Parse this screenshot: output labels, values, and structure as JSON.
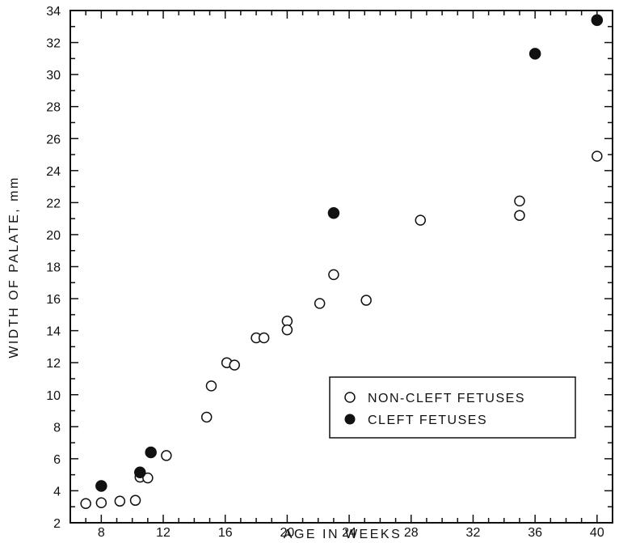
{
  "chart_data": {
    "type": "scatter",
    "title": "",
    "xlabel": "AGE IN WEEKS",
    "ylabel": "WIDTH OF PALATE, mm",
    "xlim": [
      6,
      41
    ],
    "ylim": [
      2,
      34
    ],
    "x_ticks": [
      8,
      12,
      16,
      20,
      24,
      28,
      32,
      36,
      40
    ],
    "y_ticks": [
      2,
      4,
      6,
      8,
      10,
      12,
      14,
      16,
      18,
      20,
      22,
      24,
      26,
      28,
      30,
      32,
      34
    ],
    "grid": false,
    "legend_position": "lower-right",
    "series": [
      {
        "name": "NON-CLEFT FETUSES",
        "marker": "open-circle",
        "color": "#111111",
        "points": [
          {
            "x": 7,
            "y": 3.2
          },
          {
            "x": 8,
            "y": 3.25
          },
          {
            "x": 9.2,
            "y": 3.35
          },
          {
            "x": 10.2,
            "y": 3.4
          },
          {
            "x": 10.5,
            "y": 4.85
          },
          {
            "x": 11,
            "y": 4.8
          },
          {
            "x": 12.2,
            "y": 6.2
          },
          {
            "x": 14.8,
            "y": 8.6
          },
          {
            "x": 15.1,
            "y": 10.55
          },
          {
            "x": 16.1,
            "y": 12
          },
          {
            "x": 16.6,
            "y": 11.85
          },
          {
            "x": 18,
            "y": 13.55
          },
          {
            "x": 18.5,
            "y": 13.55
          },
          {
            "x": 20,
            "y": 14.6
          },
          {
            "x": 20,
            "y": 14.05
          },
          {
            "x": 22.1,
            "y": 15.7
          },
          {
            "x": 23,
            "y": 17.5
          },
          {
            "x": 25.1,
            "y": 15.9
          },
          {
            "x": 28.6,
            "y": 20.9
          },
          {
            "x": 35,
            "y": 22.1
          },
          {
            "x": 35,
            "y": 21.2
          },
          {
            "x": 40,
            "y": 24.9
          }
        ]
      },
      {
        "name": "CLEFT FETUSES",
        "marker": "filled-circle",
        "color": "#111111",
        "points": [
          {
            "x": 8,
            "y": 4.3
          },
          {
            "x": 10.5,
            "y": 5.15
          },
          {
            "x": 11.2,
            "y": 6.4
          },
          {
            "x": 23,
            "y": 21.35
          },
          {
            "x": 36,
            "y": 31.3
          },
          {
            "x": 40,
            "y": 33.4
          }
        ]
      }
    ]
  }
}
